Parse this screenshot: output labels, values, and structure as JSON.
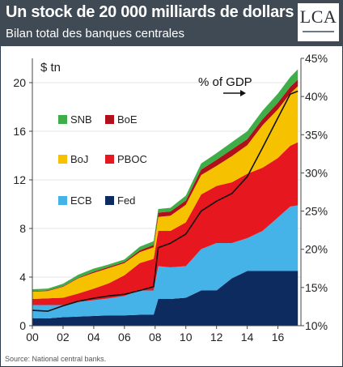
{
  "header": {
    "title": "Un stock de 20 000 milliards de dollars",
    "subtitle": "Bilan total des banques centrales",
    "logo_text": "LCA"
  },
  "source": "Source: National central banks.",
  "colors": {
    "Fed": "#0d2b5e",
    "ECB": "#45b3e8",
    "PBOC": "#e6171f",
    "BoJ": "#f6c200",
    "BoE": "#b0101a",
    "SNB": "#3fae49",
    "gdp_line": "#111111",
    "header_bg": "#3f4a55"
  },
  "chart_data": {
    "type": "area",
    "stacked": true,
    "ylabel_left": "$ tn",
    "ylabel_right_annotation": "% of GDP",
    "xlim": [
      2000,
      2017.5
    ],
    "ylim_left": [
      0,
      22
    ],
    "ylim_right": [
      10,
      45
    ],
    "x_ticks": [
      "00",
      "02",
      "04",
      "06",
      "08",
      "10",
      "12",
      "14",
      "16"
    ],
    "x_tick_values": [
      2000,
      2002,
      2004,
      2006,
      2008,
      2010,
      2012,
      2014,
      2016
    ],
    "y_ticks_left": [
      "0",
      "4",
      "8",
      "12",
      "16",
      "20"
    ],
    "y_tick_values_left": [
      0,
      4,
      8,
      12,
      16,
      20
    ],
    "y_ticks_right": [
      "10%",
      "15%",
      "20%",
      "25%",
      "30%",
      "35%",
      "40%",
      "45%"
    ],
    "y_tick_values_right": [
      10,
      15,
      20,
      25,
      30,
      35,
      40,
      45
    ],
    "x": [
      2000,
      2001,
      2002,
      2003,
      2004,
      2005,
      2006,
      2007,
      2007.9,
      2008.2,
      2009,
      2010,
      2011,
      2012,
      2013,
      2014,
      2015,
      2016,
      2016.8,
      2017.3
    ],
    "series": [
      {
        "name": "Fed",
        "values": [
          0.6,
          0.6,
          0.7,
          0.75,
          0.8,
          0.85,
          0.85,
          0.9,
          0.9,
          2.2,
          2.2,
          2.3,
          2.9,
          2.9,
          3.9,
          4.5,
          4.5,
          4.5,
          4.5,
          4.5
        ]
      },
      {
        "name": "ECB",
        "values": [
          1.1,
          1.1,
          1.0,
          1.2,
          1.3,
          1.4,
          1.6,
          2.0,
          2.0,
          2.7,
          2.6,
          2.6,
          3.4,
          3.9,
          2.9,
          2.7,
          3.3,
          4.4,
          5.3,
          5.4
        ]
      },
      {
        "name": "PBOC",
        "values": [
          0.5,
          0.55,
          0.6,
          0.7,
          0.95,
          1.25,
          1.7,
          2.25,
          2.6,
          2.9,
          3.0,
          3.6,
          4.5,
          4.7,
          5.0,
          5.3,
          5.2,
          4.9,
          5.0,
          5.2
        ]
      },
      {
        "name": "BoJ",
        "values": [
          0.6,
          0.6,
          0.9,
          1.25,
          1.3,
          1.25,
          1.0,
          0.9,
          0.95,
          1.15,
          1.25,
          1.45,
          1.6,
          1.65,
          2.15,
          2.35,
          3.5,
          4.0,
          4.3,
          4.6
        ]
      },
      {
        "name": "BoE",
        "values": [
          0.05,
          0.05,
          0.05,
          0.05,
          0.1,
          0.1,
          0.1,
          0.15,
          0.2,
          0.35,
          0.35,
          0.35,
          0.45,
          0.5,
          0.55,
          0.5,
          0.5,
          0.55,
          0.55,
          0.55
        ]
      },
      {
        "name": "SNB",
        "values": [
          0.15,
          0.15,
          0.2,
          0.25,
          0.25,
          0.2,
          0.2,
          0.3,
          0.3,
          0.3,
          0.3,
          0.4,
          0.5,
          0.55,
          0.6,
          0.65,
          0.7,
          0.75,
          0.8,
          0.85
        ]
      }
    ],
    "gdp_pct_line": {
      "name": "% of GDP",
      "x": [
        2000,
        2001,
        2002,
        2003,
        2004,
        2005,
        2006,
        2007,
        2007.9,
        2008.2,
        2009,
        2010,
        2011,
        2012,
        2013,
        2014,
        2015,
        2016,
        2016.8,
        2017.3
      ],
      "values": [
        12.0,
        11.9,
        12.6,
        13.2,
        13.6,
        13.9,
        14.1,
        14.6,
        15.1,
        20.2,
        20.8,
        22.0,
        25.0,
        26.3,
        27.3,
        29.5,
        33.3,
        37.2,
        40.3,
        40.7
      ]
    },
    "legend": [
      {
        "name": "SNB",
        "row": 0,
        "col": 0
      },
      {
        "name": "BoE",
        "row": 0,
        "col": 1
      },
      {
        "name": "BoJ",
        "row": 1,
        "col": 0
      },
      {
        "name": "PBOC",
        "row": 1,
        "col": 1
      },
      {
        "name": "ECB",
        "row": 2,
        "col": 0
      },
      {
        "name": "Fed",
        "row": 2,
        "col": 1
      }
    ],
    "legend_placement": "left"
  }
}
